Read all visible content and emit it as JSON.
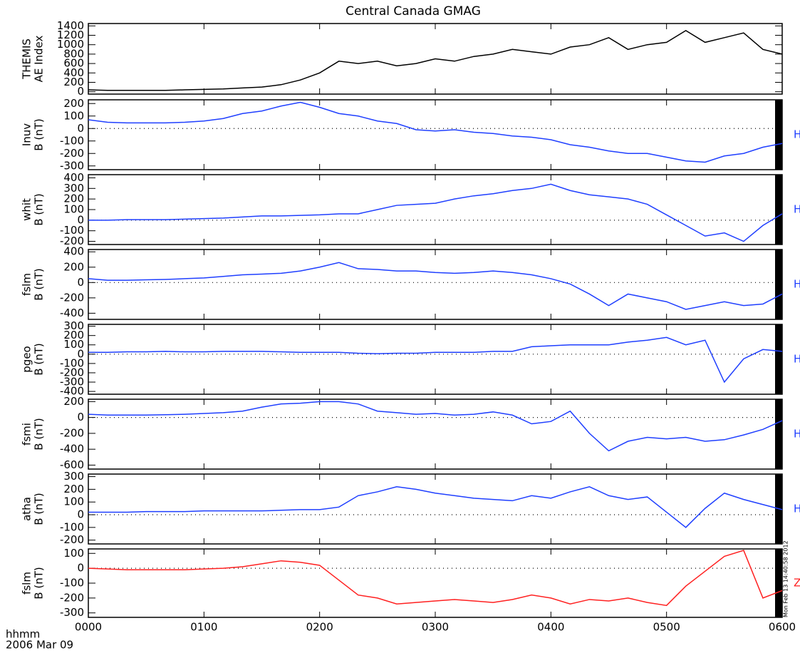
{
  "title": "Central Canada GMAG",
  "x_unit_label": "hhmm",
  "date_label": "2006 Mar 09",
  "timestamp": "Mon Feb 13 14:40:58 2012",
  "chart_data": [
    {
      "type": "line",
      "ylabel": [
        "THEMIS",
        "AE Index"
      ],
      "xlim": [
        0,
        360
      ],
      "ylim": [
        -50,
        1450
      ],
      "yticks": [
        0,
        200,
        400,
        600,
        800,
        1000,
        1200,
        1400
      ],
      "zero_line": false,
      "x": [
        0,
        10,
        20,
        30,
        40,
        50,
        60,
        70,
        80,
        90,
        100,
        110,
        120,
        130,
        140,
        150,
        160,
        170,
        180,
        190,
        200,
        210,
        220,
        230,
        240,
        250,
        260,
        270,
        280,
        290,
        300,
        310,
        320,
        330,
        340,
        350,
        360
      ],
      "series": [
        {
          "color": "#000000",
          "values": [
            40,
            30,
            30,
            30,
            30,
            40,
            50,
            60,
            80,
            100,
            150,
            250,
            400,
            650,
            600,
            650,
            550,
            600,
            700,
            650,
            750,
            800,
            900,
            850,
            800,
            950,
            1000,
            1150,
            900,
            1000,
            1050,
            1300,
            1050,
            1150,
            1250,
            900,
            800
          ]
        }
      ]
    },
    {
      "type": "line",
      "ylabel": [
        "Inuv",
        "B (nT)"
      ],
      "xlim": [
        0,
        360
      ],
      "ylim": [
        -330,
        230
      ],
      "yticks": [
        200,
        100,
        0,
        -100,
        -200,
        -300
      ],
      "zero_line": true,
      "x": [
        0,
        10,
        20,
        30,
        40,
        50,
        60,
        70,
        80,
        90,
        100,
        110,
        120,
        130,
        140,
        150,
        160,
        170,
        180,
        190,
        200,
        210,
        220,
        230,
        240,
        250,
        260,
        270,
        280,
        290,
        300,
        310,
        320,
        330,
        340,
        350,
        360
      ],
      "series": [
        {
          "name": "H",
          "color": "#1f3fff",
          "values": [
            70,
            50,
            45,
            45,
            45,
            50,
            60,
            80,
            120,
            140,
            180,
            210,
            170,
            120,
            100,
            60,
            40,
            -10,
            -20,
            -10,
            -30,
            -40,
            -60,
            -70,
            -90,
            -130,
            -150,
            -180,
            -200,
            -200,
            -230,
            -260,
            -270,
            -220,
            -200,
            -150,
            -120
          ]
        }
      ]
    },
    {
      "type": "line",
      "ylabel": [
        "whit",
        "B (nT)"
      ],
      "xlim": [
        0,
        360
      ],
      "ylim": [
        -230,
        430
      ],
      "yticks": [
        400,
        300,
        200,
        100,
        0,
        -100,
        -200
      ],
      "zero_line": true,
      "x": [
        0,
        10,
        20,
        30,
        40,
        50,
        60,
        70,
        80,
        90,
        100,
        110,
        120,
        130,
        140,
        150,
        160,
        170,
        180,
        190,
        200,
        210,
        220,
        230,
        240,
        250,
        260,
        270,
        280,
        290,
        300,
        310,
        320,
        330,
        340,
        350,
        360
      ],
      "series": [
        {
          "name": "H",
          "color": "#1f3fff",
          "values": [
            0,
            0,
            5,
            5,
            5,
            10,
            15,
            20,
            30,
            40,
            40,
            45,
            50,
            60,
            60,
            100,
            140,
            150,
            160,
            200,
            230,
            250,
            280,
            300,
            340,
            280,
            240,
            220,
            200,
            150,
            50,
            -50,
            -150,
            -120,
            -200,
            -50,
            60
          ]
        }
      ]
    },
    {
      "type": "line",
      "ylabel": [
        "fslm",
        "B (nT)"
      ],
      "xlim": [
        0,
        360
      ],
      "ylim": [
        -480,
        430
      ],
      "yticks": [
        400,
        200,
        0,
        -200,
        -400
      ],
      "zero_line": true,
      "x": [
        0,
        10,
        20,
        30,
        40,
        50,
        60,
        70,
        80,
        90,
        100,
        110,
        120,
        130,
        140,
        150,
        160,
        170,
        180,
        190,
        200,
        210,
        220,
        230,
        240,
        250,
        260,
        270,
        280,
        290,
        300,
        310,
        320,
        330,
        340,
        350,
        360
      ],
      "series": [
        {
          "name": "H",
          "color": "#1f3fff",
          "values": [
            50,
            30,
            30,
            35,
            40,
            50,
            60,
            80,
            100,
            110,
            120,
            150,
            200,
            260,
            180,
            170,
            150,
            150,
            130,
            120,
            130,
            150,
            130,
            100,
            50,
            -20,
            -150,
            -300,
            -150,
            -200,
            -250,
            -350,
            -300,
            -250,
            -300,
            -280,
            -150
          ]
        }
      ]
    },
    {
      "type": "line",
      "ylabel": [
        "pgeo",
        "B (nT)"
      ],
      "xlim": [
        0,
        360
      ],
      "ylim": [
        -430,
        320
      ],
      "yticks": [
        300,
        200,
        100,
        0,
        -100,
        -200,
        -300,
        -400
      ],
      "zero_line": true,
      "x": [
        0,
        10,
        20,
        30,
        40,
        50,
        60,
        70,
        80,
        90,
        100,
        110,
        120,
        130,
        140,
        150,
        160,
        170,
        180,
        190,
        200,
        210,
        220,
        230,
        240,
        250,
        260,
        270,
        280,
        290,
        300,
        310,
        320,
        330,
        340,
        350,
        360
      ],
      "series": [
        {
          "name": "H",
          "color": "#1f3fff",
          "values": [
            20,
            20,
            25,
            25,
            30,
            25,
            25,
            30,
            30,
            30,
            25,
            20,
            20,
            20,
            10,
            5,
            10,
            10,
            20,
            20,
            20,
            30,
            30,
            80,
            90,
            100,
            100,
            100,
            130,
            150,
            180,
            100,
            150,
            -300,
            -50,
            50,
            30
          ]
        }
      ]
    },
    {
      "type": "line",
      "ylabel": [
        "fsmi",
        "B (nT)"
      ],
      "xlim": [
        0,
        360
      ],
      "ylim": [
        -650,
        230
      ],
      "yticks": [
        200,
        0,
        -200,
        -400,
        -600
      ],
      "zero_line": true,
      "x": [
        0,
        10,
        20,
        30,
        40,
        50,
        60,
        70,
        80,
        90,
        100,
        110,
        120,
        130,
        140,
        150,
        160,
        170,
        180,
        190,
        200,
        210,
        220,
        230,
        240,
        250,
        260,
        270,
        280,
        290,
        300,
        310,
        320,
        330,
        340,
        350,
        360
      ],
      "series": [
        {
          "name": "H",
          "color": "#1f3fff",
          "values": [
            40,
            30,
            30,
            30,
            35,
            40,
            50,
            60,
            80,
            130,
            170,
            180,
            200,
            200,
            170,
            80,
            60,
            40,
            50,
            30,
            40,
            70,
            30,
            -80,
            -50,
            80,
            -200,
            -420,
            -300,
            -250,
            -270,
            -250,
            -300,
            -280,
            -220,
            -150,
            -40
          ]
        }
      ]
    },
    {
      "type": "line",
      "ylabel": [
        "atha",
        "B (nT)"
      ],
      "xlim": [
        0,
        360
      ],
      "ylim": [
        -230,
        320
      ],
      "yticks": [
        300,
        200,
        100,
        0,
        -100,
        -200
      ],
      "zero_line": true,
      "x": [
        0,
        10,
        20,
        30,
        40,
        50,
        60,
        70,
        80,
        90,
        100,
        110,
        120,
        130,
        140,
        150,
        160,
        170,
        180,
        190,
        200,
        210,
        220,
        230,
        240,
        250,
        260,
        270,
        280,
        290,
        300,
        310,
        320,
        330,
        340,
        350,
        360
      ],
      "series": [
        {
          "name": "H",
          "color": "#1f3fff",
          "values": [
            20,
            20,
            20,
            25,
            25,
            25,
            30,
            30,
            30,
            30,
            35,
            40,
            40,
            60,
            150,
            180,
            220,
            200,
            170,
            150,
            130,
            120,
            110,
            150,
            130,
            180,
            220,
            150,
            120,
            140,
            20,
            -100,
            50,
            170,
            120,
            80,
            40
          ]
        }
      ]
    },
    {
      "type": "line",
      "ylabel": [
        "fslm",
        "B (nT)"
      ],
      "xlim": [
        0,
        360
      ],
      "ylim": [
        -330,
        130
      ],
      "yticks": [
        100,
        0,
        -100,
        -200,
        -300
      ],
      "zero_line": true,
      "xticks": [
        {
          "value": 0,
          "label": "0000"
        },
        {
          "value": 60,
          "label": "0100"
        },
        {
          "value": 120,
          "label": "0200"
        },
        {
          "value": 180,
          "label": "0300"
        },
        {
          "value": 240,
          "label": "0400"
        },
        {
          "value": 300,
          "label": "0500"
        },
        {
          "value": 360,
          "label": "0600"
        }
      ],
      "x": [
        0,
        10,
        20,
        30,
        40,
        50,
        60,
        70,
        80,
        90,
        100,
        110,
        120,
        130,
        140,
        150,
        160,
        170,
        180,
        190,
        200,
        210,
        220,
        230,
        240,
        250,
        260,
        270,
        280,
        290,
        300,
        310,
        320,
        330,
        340,
        350,
        360
      ],
      "series": [
        {
          "name": "Z",
          "color": "#ff2020",
          "values": [
            0,
            -5,
            -10,
            -10,
            -10,
            -10,
            -5,
            0,
            10,
            30,
            50,
            40,
            20,
            -80,
            -180,
            -200,
            -240,
            -230,
            -220,
            -210,
            -220,
            -230,
            -210,
            -180,
            -200,
            -240,
            -210,
            -220,
            -200,
            -230,
            -250,
            -120,
            -20,
            80,
            120,
            -200,
            -150
          ]
        }
      ]
    }
  ]
}
